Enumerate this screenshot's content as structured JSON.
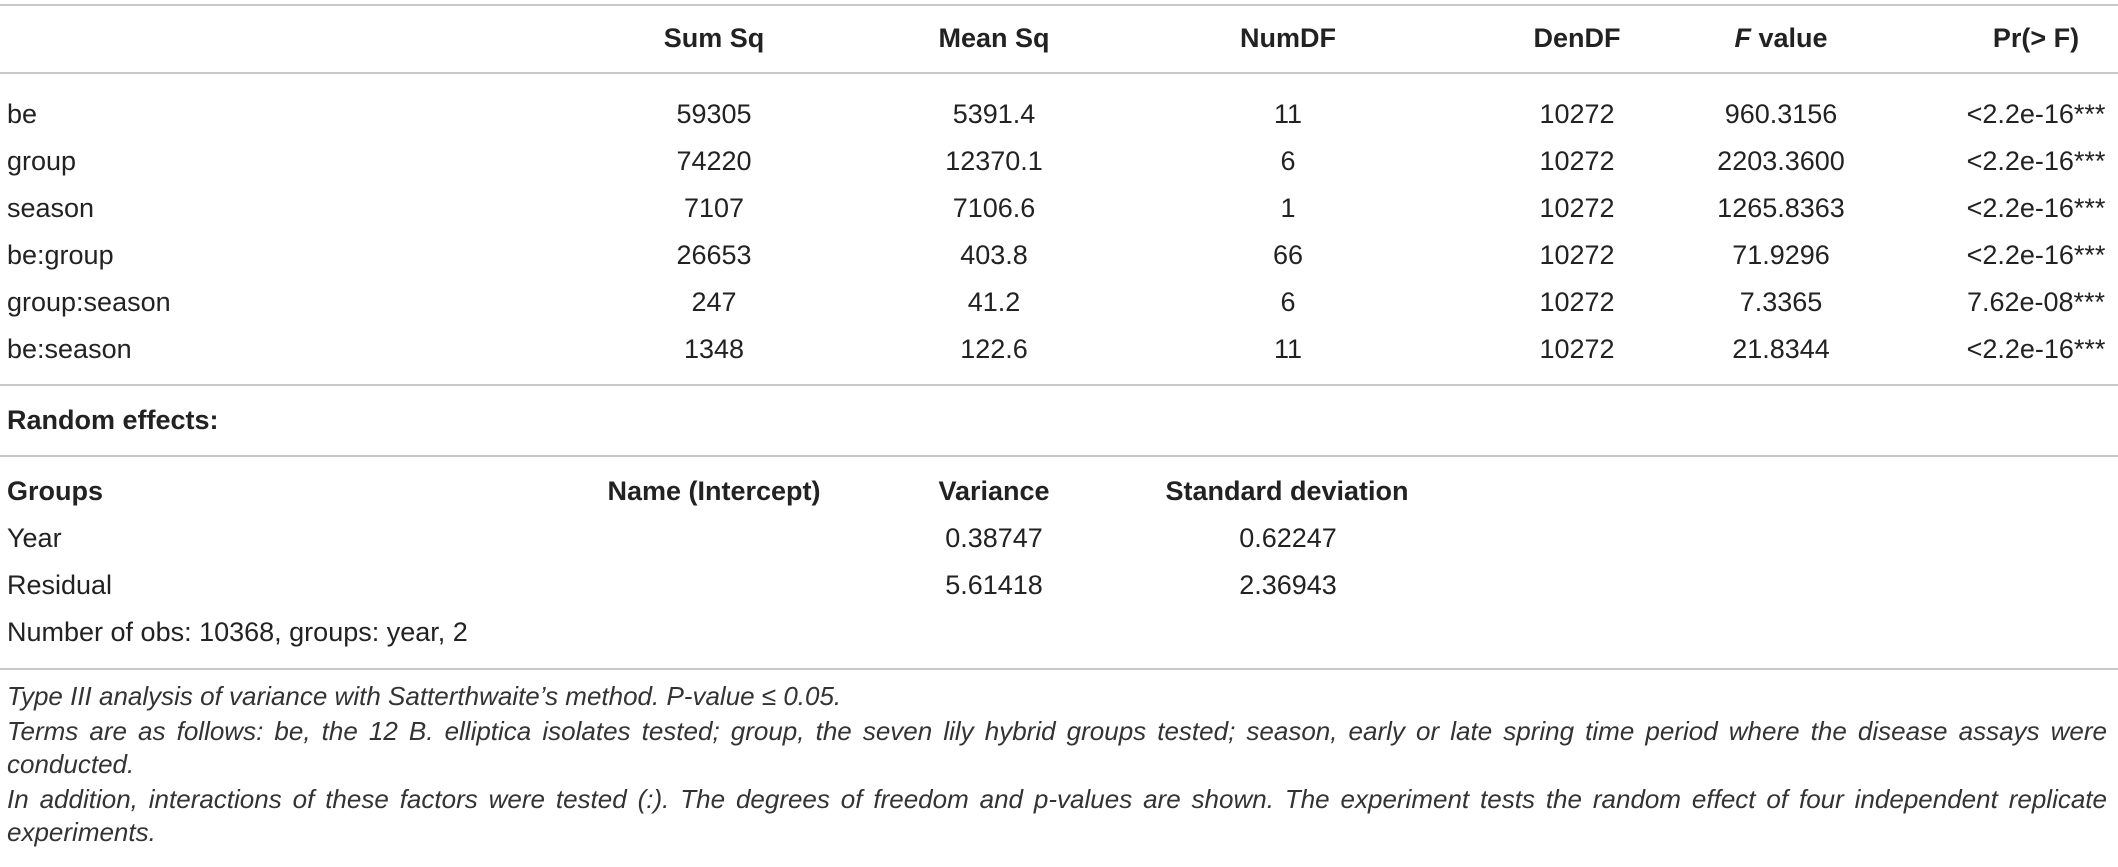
{
  "anova": {
    "headers": [
      "Sum Sq",
      "Mean Sq",
      "NumDF",
      "DenDF",
      "F",
      " value",
      "Pr(> F)"
    ],
    "rows": [
      {
        "term": "be",
        "sum_sq": "59305",
        "mean_sq": "5391.4",
        "numdf": "11",
        "dendf": "10272",
        "f": "960.3156",
        "p": "<2.2e-16***"
      },
      {
        "term": "group",
        "sum_sq": "74220",
        "mean_sq": "12370.1",
        "numdf": "6",
        "dendf": "10272",
        "f": "2203.3600",
        "p": "<2.2e-16***"
      },
      {
        "term": "season",
        "sum_sq": "7107",
        "mean_sq": "7106.6",
        "numdf": "1",
        "dendf": "10272",
        "f": "1265.8363",
        "p": "<2.2e-16***"
      },
      {
        "term": "be:group",
        "sum_sq": "26653",
        "mean_sq": "403.8",
        "numdf": "66",
        "dendf": "10272",
        "f": "71.9296",
        "p": "<2.2e-16***"
      },
      {
        "term": "group:season",
        "sum_sq": "247",
        "mean_sq": "41.2",
        "numdf": "6",
        "dendf": "10272",
        "f": "7.3365",
        "p": "7.62e-08***"
      },
      {
        "term": "be:season",
        "sum_sq": "1348",
        "mean_sq": "122.6",
        "numdf": "11",
        "dendf": "10272",
        "f": "21.8344",
        "p": "<2.2e-16***"
      }
    ]
  },
  "random": {
    "title": "Random effects:",
    "headers": [
      "Groups",
      "Name (Intercept)",
      "Variance",
      "Standard deviation"
    ],
    "rows": [
      {
        "group": "Year",
        "variance": "0.38747",
        "sd": "0.62247"
      },
      {
        "group": "Residual",
        "variance": "5.61418",
        "sd": "2.36943"
      }
    ],
    "obs": "Number of obs: 10368, groups: year, 2"
  },
  "footnotes": [
    "Type III analysis of variance with Satterthwaite’s method. P-value ≤ 0.05.",
    "Terms are as follows: be, the 12 B. elliptica isolates tested; group, the seven lily hybrid groups tested; season, early or late spring time period where the disease assays were conducted.",
    "In addition, interactions of these factors were tested (:). The degrees of freedom and p-values are shown. The experiment tests the random effect of four independent replicate experiments."
  ]
}
